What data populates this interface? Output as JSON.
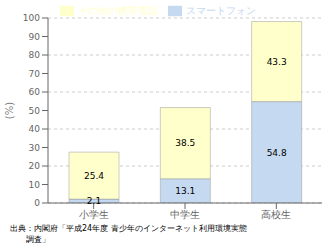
{
  "chart_data": {
    "type": "bar",
    "stacked": true,
    "categories": [
      "小学生",
      "中学生",
      "高校生"
    ],
    "series": [
      {
        "name": "スマートフォン",
        "color": "#c5d9f1",
        "values": [
          2.1,
          13.1,
          54.8
        ]
      },
      {
        "name": "その他の携帯電話",
        "color": "#ffffcc",
        "values": [
          25.4,
          38.5,
          43.3
        ]
      }
    ],
    "y_label": "(%)",
    "ylim": [
      0,
      100
    ],
    "yticks": [
      0,
      10,
      20,
      30,
      40,
      50,
      60,
      70,
      80,
      90,
      100
    ],
    "grid": true,
    "legend": "top",
    "data_labels": true,
    "annotations": [
      "出典：内閣府「平成24年度 青少年のインターネット利用環境実態",
      "　　調査」"
    ]
  }
}
